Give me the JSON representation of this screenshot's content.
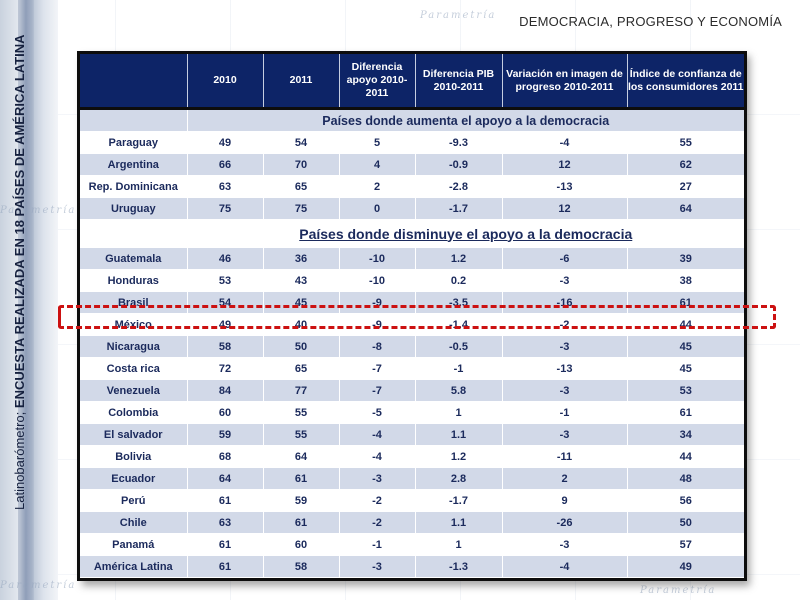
{
  "slide": {
    "title": "DEMOCRACIA, PROGRESO Y ECONOMÍA",
    "side_text_source": "Latinobarómetro;",
    "side_text_detail": " ENCUESTA  REALIZADA EN 18 PAÍSES DE AMÉRICA LATINA",
    "watermark": "Parametría"
  },
  "table": {
    "headers": [
      "",
      "2010",
      "2011",
      "Diferencia apoyo 2010-2011",
      "Diferencia PIB 2010-2011",
      "Variación en imagen de progreso 2010-2011",
      "Índice de confianza de los consumidores 2011"
    ],
    "groups": [
      {
        "label": "Países donde aumenta el apoyo a la democracia",
        "rows": [
          [
            "Paraguay",
            "49",
            "54",
            "5",
            "-9.3",
            "-4",
            "55"
          ],
          [
            "Argentina",
            "66",
            "70",
            "4",
            "-0.9",
            "12",
            "62"
          ],
          [
            "Rep. Dominicana",
            "63",
            "65",
            "2",
            "-2.8",
            "-13",
            "27"
          ],
          [
            "Uruguay",
            "75",
            "75",
            "0",
            "-1.7",
            "12",
            "64"
          ]
        ]
      },
      {
        "label": "Países donde disminuye el apoyo a la democracia",
        "rows": [
          [
            "Guatemala",
            "46",
            "36",
            "-10",
            "1.2",
            "-6",
            "39"
          ],
          [
            "Honduras",
            "53",
            "43",
            "-10",
            "0.2",
            "-3",
            "38"
          ],
          [
            "Brasil",
            "54",
            "45",
            "-9",
            "-3.5",
            "-16",
            "61"
          ],
          [
            "México",
            "49",
            "40",
            "-9",
            "-1.4",
            "-2",
            "44"
          ],
          [
            "Nicaragua",
            "58",
            "50",
            "-8",
            "-0.5",
            "-3",
            "45"
          ],
          [
            "Costa rica",
            "72",
            "65",
            "-7",
            "-1",
            "-13",
            "45"
          ],
          [
            "Venezuela",
            "84",
            "77",
            "-7",
            "5.8",
            "-3",
            "53"
          ],
          [
            "Colombia",
            "60",
            "55",
            "-5",
            "1",
            "-1",
            "61"
          ],
          [
            "El salvador",
            "59",
            "55",
            "-4",
            "1.1",
            "-3",
            "34"
          ],
          [
            "Bolivia",
            "68",
            "64",
            "-4",
            "1.2",
            "-11",
            "44"
          ],
          [
            "Ecuador",
            "64",
            "61",
            "-3",
            "2.8",
            "2",
            "48"
          ],
          [
            "Perú",
            "61",
            "59",
            "-2",
            "-1.7",
            "9",
            "56"
          ],
          [
            "Chile",
            "63",
            "61",
            "-2",
            "1.1",
            "-26",
            "50"
          ],
          [
            "Panamá",
            "61",
            "60",
            "-1",
            "1",
            "-3",
            "57"
          ],
          [
            "América Latina",
            "61",
            "58",
            "-3",
            "-1.3",
            "-4",
            "49"
          ]
        ]
      }
    ],
    "highlighted_row": "México",
    "colors": {
      "header_bg": "#0d2467",
      "shade_row": "#d2d9e8",
      "text": "#1b2a5c",
      "highlight": "#cc1111"
    }
  }
}
